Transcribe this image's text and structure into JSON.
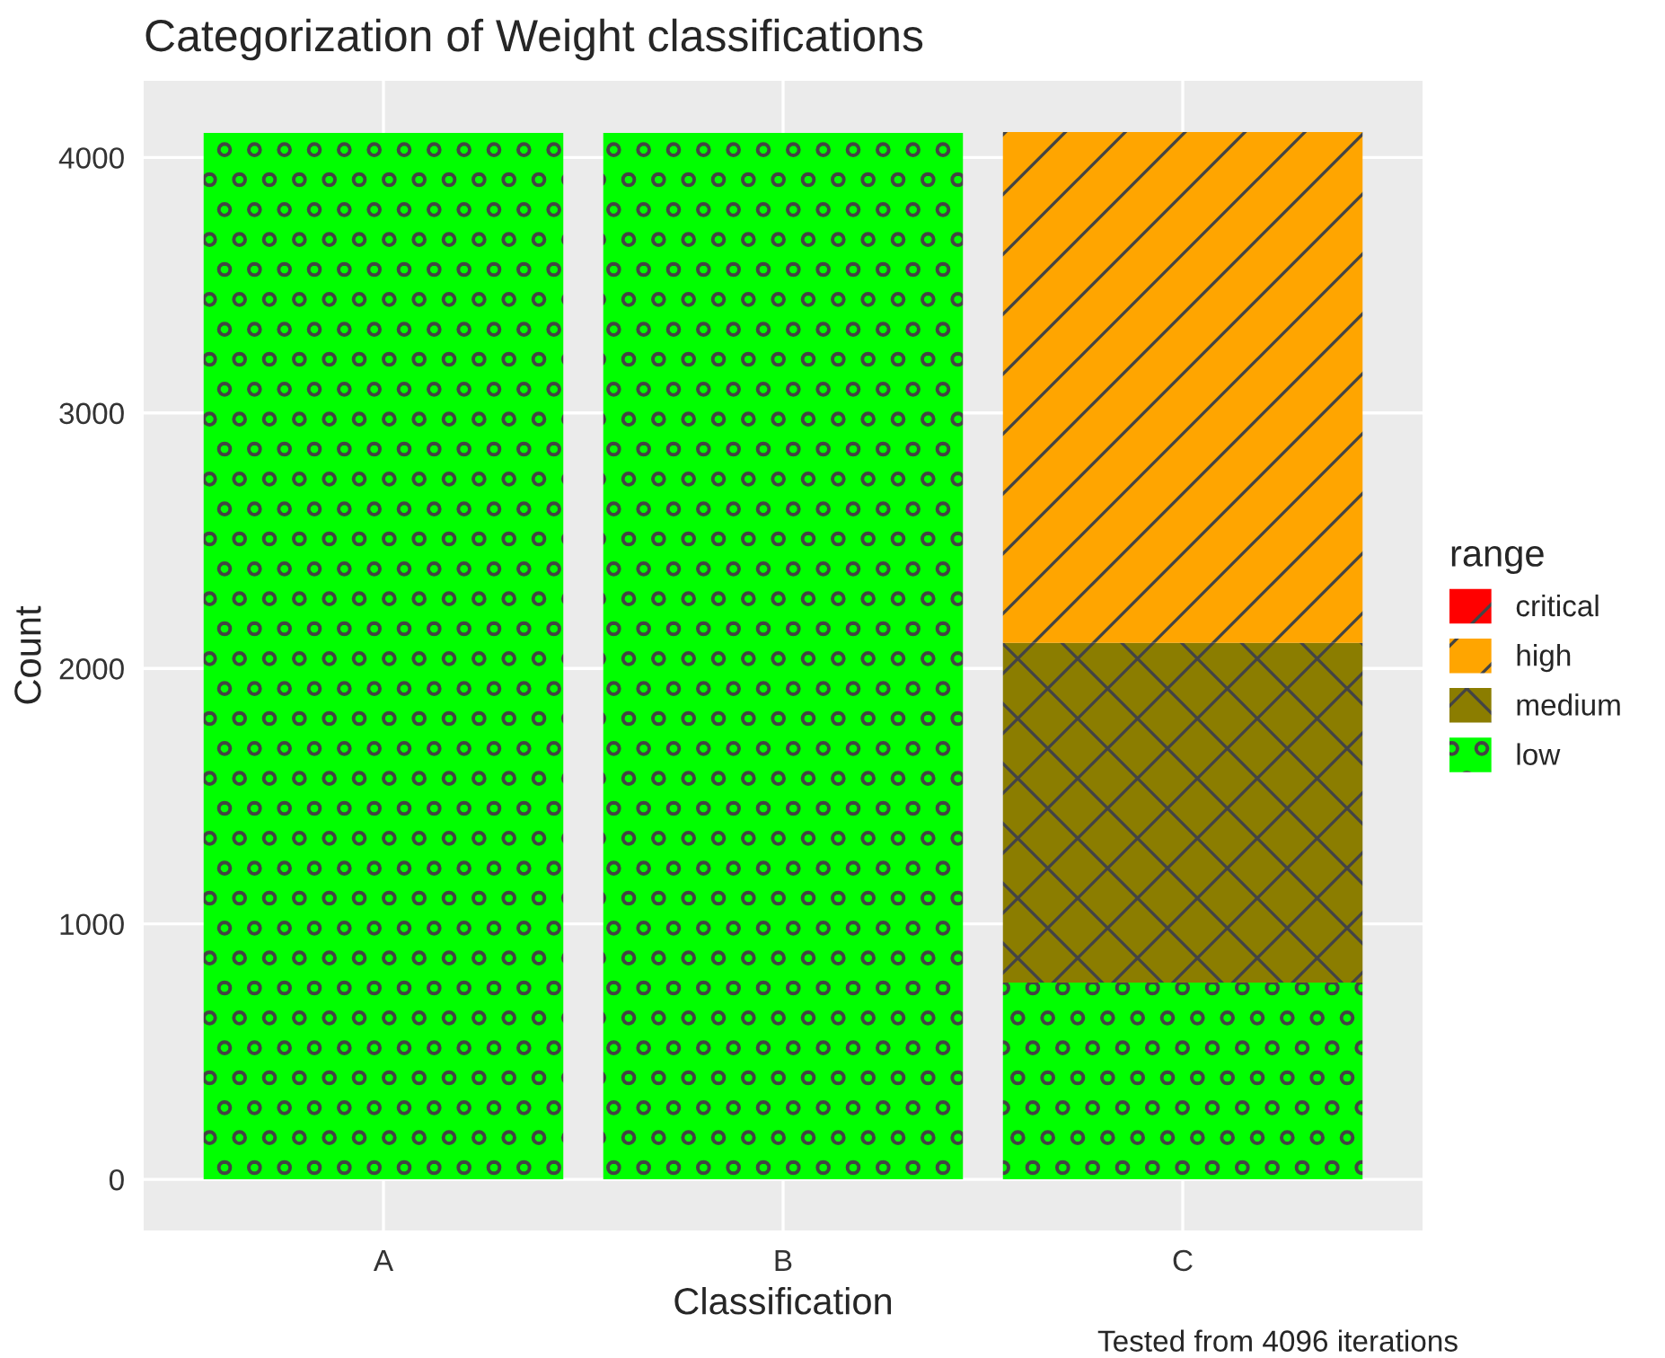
{
  "chart_data": {
    "type": "bar",
    "title": "Categorization of Weight classifications",
    "xlabel": "Classification",
    "ylabel": "Count",
    "legend_title": "range",
    "categories": [
      "A",
      "B",
      "C"
    ],
    "stacked": true,
    "series": [
      {
        "name": "low",
        "color": "#00ff00",
        "values": [
          4096,
          4096,
          770
        ]
      },
      {
        "name": "medium",
        "color": "#8b7d00",
        "values": [
          0,
          0,
          1330
        ]
      },
      {
        "name": "high",
        "color": "#ffa500",
        "values": [
          0,
          0,
          2000
        ]
      },
      {
        "name": "critical",
        "color": "#ff0000",
        "values": [
          0,
          0,
          0
        ]
      }
    ],
    "ylim": [
      -200,
      4300
    ],
    "yticks": [
      0,
      1000,
      2000,
      3000,
      4000
    ],
    "grid": true,
    "legend": "right",
    "annotations": [
      "Tested from 4096 iterations"
    ]
  }
}
